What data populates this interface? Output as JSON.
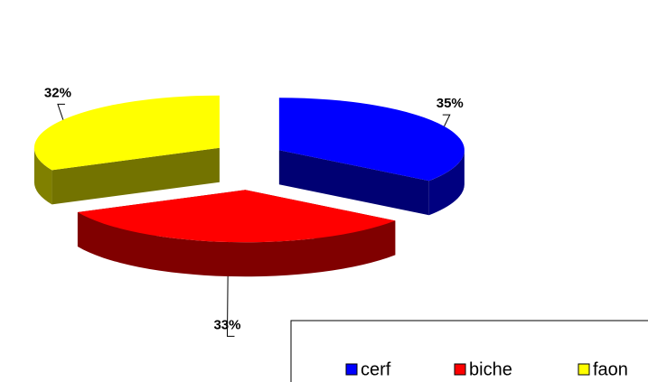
{
  "chart_data": {
    "type": "pie",
    "categories": [
      "cerf",
      "biche",
      "faon"
    ],
    "values": [
      35,
      33,
      32
    ],
    "value_labels": [
      "35%",
      "33%",
      "32%"
    ],
    "colors": [
      "#0000ff",
      "#ff0000",
      "#ffff00"
    ],
    "legend": "bottom-right"
  }
}
